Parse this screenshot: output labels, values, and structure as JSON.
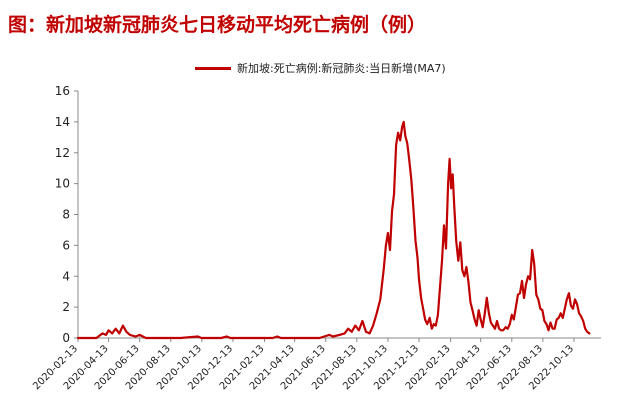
{
  "title": "图：新加坡新冠肺炎七日移动平均死亡病例（例）",
  "colors": {
    "series": "#c00000",
    "title": "#c00000",
    "axis": "#888888"
  },
  "chart_data": {
    "type": "line",
    "title": "图：新加坡新冠肺炎七日移动平均死亡病例（例）",
    "xlabel": "",
    "ylabel": "",
    "legend_position": "top-center",
    "grid": false,
    "ylim": [
      0,
      16
    ],
    "yticks": [
      0,
      2,
      4,
      6,
      8,
      10,
      12,
      14,
      16
    ],
    "xlim": [
      "2020-02-13",
      "2022-12-05"
    ],
    "xticks": [
      "2020-02-13",
      "2020-04-13",
      "2020-06-13",
      "2020-08-13",
      "2020-10-13",
      "2020-12-13",
      "2021-02-13",
      "2021-04-13",
      "2021-06-13",
      "2021-08-13",
      "2021-10-13",
      "2021-12-13",
      "2022-02-13",
      "2022-04-13",
      "2022-06-13",
      "2022-08-13",
      "2022-10-13"
    ],
    "series": [
      {
        "name": "新加坡:死亡病例:新冠肺炎:当日新增(MA7)",
        "color": "#c00000",
        "points": [
          [
            "2020-02-13",
            0.0
          ],
          [
            "2020-03-20",
            0.0
          ],
          [
            "2020-04-01",
            0.3
          ],
          [
            "2020-04-08",
            0.2
          ],
          [
            "2020-04-13",
            0.5
          ],
          [
            "2020-04-20",
            0.3
          ],
          [
            "2020-04-27",
            0.6
          ],
          [
            "2020-05-04",
            0.3
          ],
          [
            "2020-05-11",
            0.8
          ],
          [
            "2020-05-18",
            0.4
          ],
          [
            "2020-05-25",
            0.2
          ],
          [
            "2020-06-05",
            0.1
          ],
          [
            "2020-06-13",
            0.2
          ],
          [
            "2020-06-25",
            0.0
          ],
          [
            "2020-09-01",
            0.0
          ],
          [
            "2020-10-05",
            0.1
          ],
          [
            "2020-10-12",
            0.0
          ],
          [
            "2020-11-20",
            0.0
          ],
          [
            "2020-12-01",
            0.1
          ],
          [
            "2020-12-08",
            0.0
          ],
          [
            "2021-03-01",
            0.0
          ],
          [
            "2021-03-10",
            0.1
          ],
          [
            "2021-03-17",
            0.0
          ],
          [
            "2021-06-01",
            0.0
          ],
          [
            "2021-06-10",
            0.1
          ],
          [
            "2021-06-20",
            0.2
          ],
          [
            "2021-06-27",
            0.1
          ],
          [
            "2021-07-10",
            0.2
          ],
          [
            "2021-07-20",
            0.3
          ],
          [
            "2021-07-27",
            0.6
          ],
          [
            "2021-08-03",
            0.4
          ],
          [
            "2021-08-10",
            0.8
          ],
          [
            "2021-08-17",
            0.5
          ],
          [
            "2021-08-24",
            1.1
          ],
          [
            "2021-08-31",
            0.4
          ],
          [
            "2021-09-07",
            0.3
          ],
          [
            "2021-09-14",
            0.8
          ],
          [
            "2021-09-21",
            1.6
          ],
          [
            "2021-09-28",
            2.5
          ],
          [
            "2021-10-05",
            4.5
          ],
          [
            "2021-10-09",
            6.0
          ],
          [
            "2021-10-13",
            6.8
          ],
          [
            "2021-10-17",
            5.7
          ],
          [
            "2021-10-21",
            8.2
          ],
          [
            "2021-10-25",
            9.3
          ],
          [
            "2021-10-29",
            12.5
          ],
          [
            "2021-11-02",
            13.3
          ],
          [
            "2021-11-06",
            12.8
          ],
          [
            "2021-11-10",
            13.7
          ],
          [
            "2021-11-13",
            14.0
          ],
          [
            "2021-11-16",
            13.1
          ],
          [
            "2021-11-20",
            12.6
          ],
          [
            "2021-11-24",
            11.5
          ],
          [
            "2021-11-28",
            10.2
          ],
          [
            "2021-12-02",
            8.4
          ],
          [
            "2021-12-06",
            6.3
          ],
          [
            "2021-12-10",
            5.2
          ],
          [
            "2021-12-13",
            3.8
          ],
          [
            "2021-12-17",
            2.6
          ],
          [
            "2021-12-21",
            1.9
          ],
          [
            "2021-12-25",
            1.2
          ],
          [
            "2021-12-29",
            0.9
          ],
          [
            "2022-01-03",
            1.3
          ],
          [
            "2022-01-07",
            0.6
          ],
          [
            "2022-01-11",
            0.9
          ],
          [
            "2022-01-15",
            0.8
          ],
          [
            "2022-01-19",
            1.5
          ],
          [
            "2022-01-23",
            3.2
          ],
          [
            "2022-01-27",
            5.0
          ],
          [
            "2022-01-31",
            7.3
          ],
          [
            "2022-02-04",
            5.8
          ],
          [
            "2022-02-08",
            10.0
          ],
          [
            "2022-02-11",
            11.6
          ],
          [
            "2022-02-14",
            9.7
          ],
          [
            "2022-02-17",
            10.6
          ],
          [
            "2022-02-20",
            8.6
          ],
          [
            "2022-02-24",
            6.3
          ],
          [
            "2022-02-28",
            5.0
          ],
          [
            "2022-03-04",
            6.2
          ],
          [
            "2022-03-08",
            4.4
          ],
          [
            "2022-03-12",
            4.0
          ],
          [
            "2022-03-16",
            4.6
          ],
          [
            "2022-03-20",
            3.6
          ],
          [
            "2022-03-24",
            2.3
          ],
          [
            "2022-03-28",
            1.8
          ],
          [
            "2022-04-01",
            1.2
          ],
          [
            "2022-04-05",
            0.8
          ],
          [
            "2022-04-09",
            1.8
          ],
          [
            "2022-04-13",
            1.2
          ],
          [
            "2022-04-17",
            0.7
          ],
          [
            "2022-04-21",
            1.6
          ],
          [
            "2022-04-25",
            2.6
          ],
          [
            "2022-04-29",
            1.6
          ],
          [
            "2022-05-03",
            1.0
          ],
          [
            "2022-05-07",
            0.8
          ],
          [
            "2022-05-11",
            0.6
          ],
          [
            "2022-05-15",
            1.1
          ],
          [
            "2022-05-19",
            0.6
          ],
          [
            "2022-05-23",
            0.5
          ],
          [
            "2022-05-27",
            0.5
          ],
          [
            "2022-06-01",
            0.7
          ],
          [
            "2022-06-05",
            0.6
          ],
          [
            "2022-06-09",
            0.9
          ],
          [
            "2022-06-13",
            1.5
          ],
          [
            "2022-06-17",
            1.2
          ],
          [
            "2022-06-21",
            2.0
          ],
          [
            "2022-06-25",
            2.8
          ],
          [
            "2022-06-29",
            2.9
          ],
          [
            "2022-07-03",
            3.7
          ],
          [
            "2022-07-07",
            2.6
          ],
          [
            "2022-07-11",
            3.5
          ],
          [
            "2022-07-15",
            4.0
          ],
          [
            "2022-07-19",
            3.8
          ],
          [
            "2022-07-23",
            5.7
          ],
          [
            "2022-07-27",
            4.8
          ],
          [
            "2022-07-31",
            2.8
          ],
          [
            "2022-08-04",
            2.5
          ],
          [
            "2022-08-08",
            1.9
          ],
          [
            "2022-08-12",
            1.8
          ],
          [
            "2022-08-16",
            1.1
          ],
          [
            "2022-08-20",
            0.9
          ],
          [
            "2022-08-24",
            0.5
          ],
          [
            "2022-08-28",
            1.0
          ],
          [
            "2022-09-01",
            0.6
          ],
          [
            "2022-09-05",
            0.6
          ],
          [
            "2022-09-09",
            1.2
          ],
          [
            "2022-09-13",
            1.3
          ],
          [
            "2022-09-17",
            1.6
          ],
          [
            "2022-09-21",
            1.3
          ],
          [
            "2022-09-25",
            1.9
          ],
          [
            "2022-09-29",
            2.5
          ],
          [
            "2022-10-03",
            2.9
          ],
          [
            "2022-10-07",
            2.1
          ],
          [
            "2022-10-11",
            1.9
          ],
          [
            "2022-10-15",
            2.5
          ],
          [
            "2022-10-19",
            2.2
          ],
          [
            "2022-10-23",
            1.6
          ],
          [
            "2022-10-27",
            1.4
          ],
          [
            "2022-10-31",
            1.1
          ],
          [
            "2022-11-04",
            0.6
          ],
          [
            "2022-11-08",
            0.4
          ],
          [
            "2022-11-12",
            0.3
          ]
        ]
      }
    ]
  }
}
